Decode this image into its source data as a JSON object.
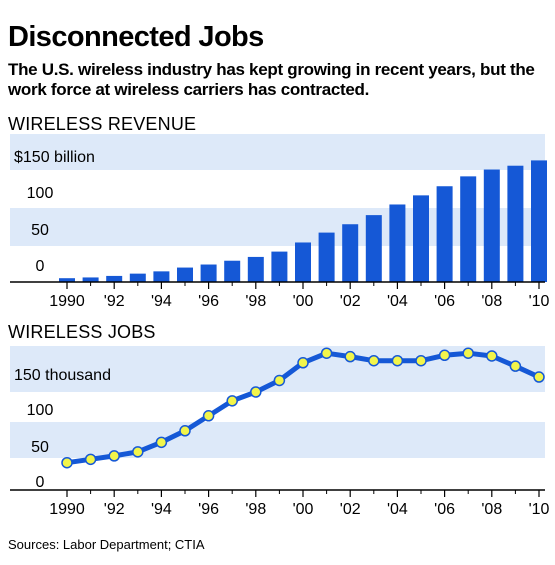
{
  "title": "Disconnected Jobs",
  "subtitle": "The U.S. wireless industry has kept growing in recent years, but the work force at wireless carriers has contracted.",
  "source": "Sources: Labor Department; CTIA",
  "colors": {
    "band": "#dde9f9",
    "bar": "#1558d6",
    "line": "#1558d6",
    "marker": "#f2f54b"
  },
  "chart_data": [
    {
      "type": "bar",
      "title": "WIRELESS REVENUE",
      "x": [
        1990,
        1991,
        1992,
        1993,
        1994,
        1995,
        1996,
        1997,
        1998,
        1999,
        2000,
        2001,
        2002,
        2003,
        2004,
        2005,
        2006,
        2007,
        2008,
        2009,
        2010
      ],
      "values": [
        5,
        6,
        8,
        11,
        14,
        19,
        23,
        28,
        33,
        40,
        52,
        65,
        76,
        88,
        102,
        114,
        126,
        139,
        148,
        153,
        160
      ],
      "ytick_values": [
        0,
        50,
        100,
        150
      ],
      "ytick_labels": [
        "0",
        "50",
        "100",
        "$150 billion"
      ],
      "xtick_values": [
        1990,
        1992,
        1994,
        1996,
        1998,
        2000,
        2002,
        2004,
        2006,
        2008,
        2010
      ],
      "xtick_labels": [
        "1990",
        "'92",
        "'94",
        "'96",
        "'98",
        "'00",
        "'02",
        "'04",
        "'06",
        "'08",
        "'10"
      ],
      "ylim": [
        0,
        165
      ],
      "grid": "alternating bands"
    },
    {
      "type": "line",
      "title": "WIRELESS JOBS",
      "x": [
        1990,
        1991,
        1992,
        1993,
        1994,
        1995,
        1996,
        1997,
        1998,
        1999,
        2000,
        2001,
        2002,
        2003,
        2004,
        2005,
        2006,
        2007,
        2008,
        2009,
        2010
      ],
      "values": [
        21,
        26,
        31,
        37,
        51,
        68,
        90,
        112,
        125,
        142,
        168,
        182,
        177,
        171,
        171,
        171,
        179,
        182,
        178,
        163,
        147
      ],
      "ytick_values": [
        0,
        50,
        100,
        150
      ],
      "ytick_labels": [
        "0",
        "50",
        "100",
        "150 thousand"
      ],
      "xtick_values": [
        1990,
        1992,
        1994,
        1996,
        1998,
        2000,
        2002,
        2004,
        2006,
        2008,
        2010
      ],
      "xtick_labels": [
        "1990",
        "'92",
        "'94",
        "'96",
        "'98",
        "'00",
        "'02",
        "'04",
        "'06",
        "'08",
        "'10"
      ],
      "ylim": [
        0,
        190
      ],
      "grid": "alternating bands"
    }
  ]
}
